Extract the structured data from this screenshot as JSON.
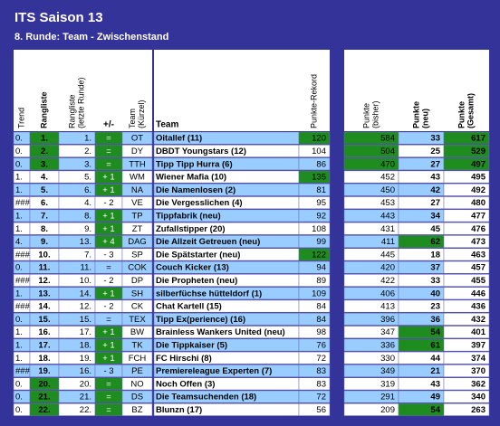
{
  "header": {
    "title": "ITS Saison 13",
    "subtitle": "8. Runde: Team - Zwischenstand"
  },
  "table": {
    "columns": [
      [
        "Trend"
      ],
      [
        "Rangliste"
      ],
      [
        "Rangliste",
        "(letzte Runde)"
      ],
      [
        "+/-"
      ],
      [
        "Team",
        "(Kürzel)"
      ],
      [
        "Team"
      ],
      [
        "Punkte-Rekord"
      ],
      [
        "Punkte",
        "(bisher)"
      ],
      [
        "Punkte",
        "(neu)"
      ],
      [
        "Punkte",
        "(Gesamt)"
      ]
    ],
    "rows": [
      [
        "0.",
        "1.",
        "1.",
        "=",
        "OT",
        "Oitallef (11)",
        120,
        584,
        33,
        617
      ],
      [
        "0.",
        "2.",
        "2.",
        "=",
        "DY",
        "DBDT Youngstars (12)",
        104,
        504,
        25,
        529
      ],
      [
        "0.",
        "3.",
        "3.",
        "=",
        "TTH",
        "Tipp Tipp Hurra (6)",
        86,
        470,
        27,
        497
      ],
      [
        "1.",
        "4.",
        "5.",
        "+ 1",
        "WM",
        "Wiener Mafia (10)",
        135,
        452,
        43,
        495
      ],
      [
        "1.",
        "5.",
        "6.",
        "+ 1",
        "NA",
        "Die Namenlosen (2)",
        81,
        450,
        42,
        492
      ],
      [
        "###",
        "6.",
        "4.",
        "- 2",
        "VE",
        "Die Vergesslichen (4)",
        95,
        453,
        27,
        480
      ],
      [
        "1.",
        "7.",
        "8.",
        "+ 1",
        "TP",
        "Tippfabrik (neu)",
        92,
        443,
        34,
        477
      ],
      [
        "1.",
        "8.",
        "9.",
        "+ 1",
        "ZT",
        "Zufallstipper (20)",
        108,
        431,
        45,
        476
      ],
      [
        "4.",
        "9.",
        "13.",
        "+ 4",
        "DAG",
        "Die Allzeit Getreuen (neu)",
        99,
        411,
        62,
        473
      ],
      [
        "###",
        "10.",
        "7.",
        "- 3",
        "SP",
        "Die Spätstarter (neu)",
        122,
        445,
        18,
        463
      ],
      [
        "0.",
        "11.",
        "11.",
        "=",
        "COK",
        "Couch Kicker (13)",
        94,
        420,
        37,
        457
      ],
      [
        "###",
        "12.",
        "10.",
        "- 2",
        "DP",
        "Die Propheten (neu)",
        89,
        422,
        33,
        455
      ],
      [
        "1.",
        "13.",
        "14.",
        "+ 1",
        "SH",
        "silberfüchse hütteldorf (1)",
        109,
        406,
        40,
        446
      ],
      [
        "###",
        "14.",
        "12.",
        "- 2",
        "CK",
        "Chat Kartell (15)",
        84,
        413,
        23,
        436
      ],
      [
        "0.",
        "15.",
        "15.",
        "=",
        "TEX",
        "Tipp Ex(perience) (16)",
        84,
        396,
        36,
        432
      ],
      [
        "1.",
        "16.",
        "17.",
        "+ 1",
        "BW",
        "Brainless Wankers United (neu)",
        98,
        347,
        54,
        401
      ],
      [
        "1.",
        "17.",
        "18.",
        "+ 1",
        "TK",
        "Die Tippkaiser (5)",
        76,
        336,
        61,
        397
      ],
      [
        "1.",
        "18.",
        "19.",
        "+ 1",
        "FCH",
        "FC Hirschi (8)",
        72,
        330,
        44,
        374
      ],
      [
        "###",
        "19.",
        "16.",
        "- 3",
        "PE",
        "Premiereleague Experten (7)",
        83,
        349,
        21,
        370
      ],
      [
        "0.",
        "20.",
        "20.",
        "=",
        "NO",
        "Noch Offen (3)",
        83,
        319,
        43,
        362
      ],
      [
        "0.",
        "21.",
        "21.",
        "=",
        "DS",
        "Die Teamsuchenden (18)",
        72,
        291,
        49,
        340
      ],
      [
        "0.",
        "22.",
        "22.",
        "=",
        "BZ",
        "Blunzn (17)",
        56,
        209,
        54,
        263
      ]
    ]
  }
}
